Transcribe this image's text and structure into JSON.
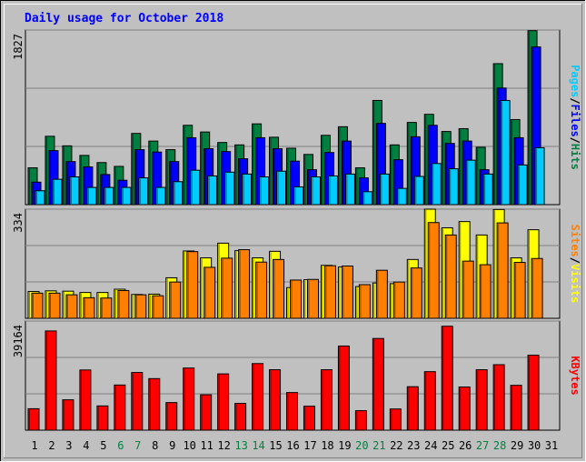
{
  "chart_data": {
    "type": "bar",
    "title": "Daily usage for October 2018",
    "categories": [
      "1",
      "2",
      "3",
      "4",
      "5",
      "6",
      "7",
      "8",
      "9",
      "10",
      "11",
      "12",
      "13",
      "14",
      "15",
      "16",
      "17",
      "18",
      "19",
      "20",
      "21",
      "22",
      "23",
      "24",
      "25",
      "26",
      "27",
      "28",
      "29",
      "30",
      "31"
    ],
    "weekend_days": [
      "6",
      "7",
      "13",
      "14",
      "20",
      "21",
      "27",
      "28"
    ],
    "panels": [
      {
        "id": "hits",
        "ymax_label": "1827",
        "ylim": [
          0,
          1827
        ],
        "legend": [
          {
            "name": "Pages",
            "color": "#00ccff"
          },
          {
            "name": "/",
            "color": "#000000"
          },
          {
            "name": "Files",
            "color": "#0000ff"
          },
          {
            "name": "/",
            "color": "#000000"
          },
          {
            "name": "Hits",
            "color": "#008040"
          }
        ],
        "series": [
          {
            "name": "Hits",
            "color": "#008040",
            "values": [
              385,
              715,
              615,
              515,
              440,
              400,
              745,
              665,
              575,
              830,
              760,
              650,
              625,
              845,
              705,
              590,
              525,
              725,
              815,
              385,
              1090,
              625,
              860,
              945,
              765,
              795,
              600,
              1475,
              890,
              1820,
              0
            ]
          },
          {
            "name": "Files",
            "color": "#0000ff",
            "values": [
              235,
              565,
              450,
              395,
              315,
              255,
              575,
              550,
              450,
              700,
              585,
              555,
              480,
              700,
              585,
              455,
              365,
              545,
              665,
              280,
              850,
              470,
              710,
              830,
              640,
              665,
              365,
              1220,
              700,
              1650,
              0
            ]
          },
          {
            "name": "Pages",
            "color": "#00ccff",
            "values": [
              145,
              265,
              290,
              180,
              180,
              180,
              280,
              180,
              240,
              360,
              300,
              340,
              320,
              290,
              350,
              185,
              290,
              300,
              320,
              135,
              320,
              170,
              295,
              430,
              375,
              465,
              320,
              1090,
              415,
              595,
              0
            ]
          }
        ]
      },
      {
        "id": "visits",
        "ymax_label": "334",
        "ylim": [
          0,
          334
        ],
        "legend": [
          {
            "name": "Sites",
            "color": "#ff8000"
          },
          {
            "name": "/",
            "color": "#000000"
          },
          {
            "name": "Visits",
            "color": "#ffff00"
          }
        ],
        "series": [
          {
            "name": "Visits",
            "color": "#ffff00",
            "values": [
              82,
              84,
              83,
              79,
              79,
              89,
              73,
              74,
              124,
              206,
              185,
              230,
              207,
              185,
              205,
              94,
              118,
              162,
              157,
              97,
              108,
              106,
              180,
              334,
              277,
              296,
              255,
              333,
              185,
              271,
              0
            ]
          },
          {
            "name": "Sites",
            "color": "#ff8000",
            "values": [
              77,
              77,
              72,
              63,
              62,
              85,
              72,
              69,
              111,
              204,
              156,
              184,
              210,
              172,
              180,
              117,
              119,
              161,
              160,
              103,
              147,
              111,
              154,
              293,
              255,
              175,
              164,
              292,
              171,
              183,
              0
            ]
          }
        ]
      },
      {
        "id": "kbytes",
        "ymax_label": "39164",
        "ylim": [
          0,
          39164
        ],
        "legend": [
          {
            "name": "KBytes",
            "color": "#ff0000"
          }
        ],
        "series": [
          {
            "name": "KBytes",
            "color": "#ff0000",
            "values": [
              7700,
              35600,
              10900,
              21600,
              8700,
              16200,
              20700,
              18500,
              9900,
              22300,
              12700,
              20200,
              9600,
              23900,
              21700,
              13500,
              8600,
              21700,
              30200,
              7000,
              32900,
              7600,
              15600,
              21000,
              37300,
              15500,
              21700,
              23500,
              16100,
              26900,
              0
            ]
          }
        ]
      }
    ]
  }
}
